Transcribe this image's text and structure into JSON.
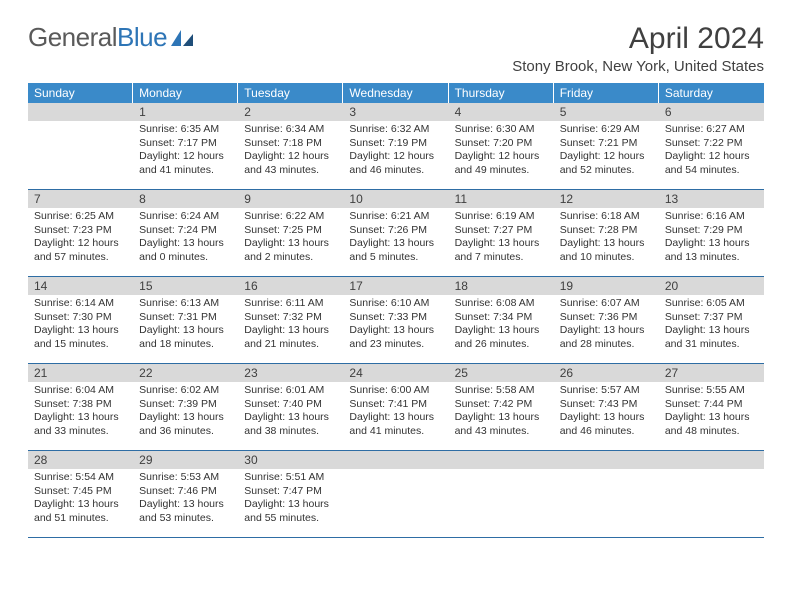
{
  "logo": {
    "word1": "General",
    "word2": "Blue"
  },
  "title": "April 2024",
  "subtitle": "Stony Brook, New York, United States",
  "colors": {
    "header_bg": "#3a8ac9",
    "header_text": "#ffffff",
    "band_bg": "#d9d9d9",
    "rule": "#2e6da4",
    "logo_gray": "#5a5a5a",
    "logo_blue": "#2e75b6"
  },
  "day_headers": [
    "Sunday",
    "Monday",
    "Tuesday",
    "Wednesday",
    "Thursday",
    "Friday",
    "Saturday"
  ],
  "weeks": [
    [
      {
        "num": "",
        "sunrise": "",
        "sunset": "",
        "daylight": ""
      },
      {
        "num": "1",
        "sunrise": "Sunrise: 6:35 AM",
        "sunset": "Sunset: 7:17 PM",
        "daylight": "Daylight: 12 hours and 41 minutes."
      },
      {
        "num": "2",
        "sunrise": "Sunrise: 6:34 AM",
        "sunset": "Sunset: 7:18 PM",
        "daylight": "Daylight: 12 hours and 43 minutes."
      },
      {
        "num": "3",
        "sunrise": "Sunrise: 6:32 AM",
        "sunset": "Sunset: 7:19 PM",
        "daylight": "Daylight: 12 hours and 46 minutes."
      },
      {
        "num": "4",
        "sunrise": "Sunrise: 6:30 AM",
        "sunset": "Sunset: 7:20 PM",
        "daylight": "Daylight: 12 hours and 49 minutes."
      },
      {
        "num": "5",
        "sunrise": "Sunrise: 6:29 AM",
        "sunset": "Sunset: 7:21 PM",
        "daylight": "Daylight: 12 hours and 52 minutes."
      },
      {
        "num": "6",
        "sunrise": "Sunrise: 6:27 AM",
        "sunset": "Sunset: 7:22 PM",
        "daylight": "Daylight: 12 hours and 54 minutes."
      }
    ],
    [
      {
        "num": "7",
        "sunrise": "Sunrise: 6:25 AM",
        "sunset": "Sunset: 7:23 PM",
        "daylight": "Daylight: 12 hours and 57 minutes."
      },
      {
        "num": "8",
        "sunrise": "Sunrise: 6:24 AM",
        "sunset": "Sunset: 7:24 PM",
        "daylight": "Daylight: 13 hours and 0 minutes."
      },
      {
        "num": "9",
        "sunrise": "Sunrise: 6:22 AM",
        "sunset": "Sunset: 7:25 PM",
        "daylight": "Daylight: 13 hours and 2 minutes."
      },
      {
        "num": "10",
        "sunrise": "Sunrise: 6:21 AM",
        "sunset": "Sunset: 7:26 PM",
        "daylight": "Daylight: 13 hours and 5 minutes."
      },
      {
        "num": "11",
        "sunrise": "Sunrise: 6:19 AM",
        "sunset": "Sunset: 7:27 PM",
        "daylight": "Daylight: 13 hours and 7 minutes."
      },
      {
        "num": "12",
        "sunrise": "Sunrise: 6:18 AM",
        "sunset": "Sunset: 7:28 PM",
        "daylight": "Daylight: 13 hours and 10 minutes."
      },
      {
        "num": "13",
        "sunrise": "Sunrise: 6:16 AM",
        "sunset": "Sunset: 7:29 PM",
        "daylight": "Daylight: 13 hours and 13 minutes."
      }
    ],
    [
      {
        "num": "14",
        "sunrise": "Sunrise: 6:14 AM",
        "sunset": "Sunset: 7:30 PM",
        "daylight": "Daylight: 13 hours and 15 minutes."
      },
      {
        "num": "15",
        "sunrise": "Sunrise: 6:13 AM",
        "sunset": "Sunset: 7:31 PM",
        "daylight": "Daylight: 13 hours and 18 minutes."
      },
      {
        "num": "16",
        "sunrise": "Sunrise: 6:11 AM",
        "sunset": "Sunset: 7:32 PM",
        "daylight": "Daylight: 13 hours and 21 minutes."
      },
      {
        "num": "17",
        "sunrise": "Sunrise: 6:10 AM",
        "sunset": "Sunset: 7:33 PM",
        "daylight": "Daylight: 13 hours and 23 minutes."
      },
      {
        "num": "18",
        "sunrise": "Sunrise: 6:08 AM",
        "sunset": "Sunset: 7:34 PM",
        "daylight": "Daylight: 13 hours and 26 minutes."
      },
      {
        "num": "19",
        "sunrise": "Sunrise: 6:07 AM",
        "sunset": "Sunset: 7:36 PM",
        "daylight": "Daylight: 13 hours and 28 minutes."
      },
      {
        "num": "20",
        "sunrise": "Sunrise: 6:05 AM",
        "sunset": "Sunset: 7:37 PM",
        "daylight": "Daylight: 13 hours and 31 minutes."
      }
    ],
    [
      {
        "num": "21",
        "sunrise": "Sunrise: 6:04 AM",
        "sunset": "Sunset: 7:38 PM",
        "daylight": "Daylight: 13 hours and 33 minutes."
      },
      {
        "num": "22",
        "sunrise": "Sunrise: 6:02 AM",
        "sunset": "Sunset: 7:39 PM",
        "daylight": "Daylight: 13 hours and 36 minutes."
      },
      {
        "num": "23",
        "sunrise": "Sunrise: 6:01 AM",
        "sunset": "Sunset: 7:40 PM",
        "daylight": "Daylight: 13 hours and 38 minutes."
      },
      {
        "num": "24",
        "sunrise": "Sunrise: 6:00 AM",
        "sunset": "Sunset: 7:41 PM",
        "daylight": "Daylight: 13 hours and 41 minutes."
      },
      {
        "num": "25",
        "sunrise": "Sunrise: 5:58 AM",
        "sunset": "Sunset: 7:42 PM",
        "daylight": "Daylight: 13 hours and 43 minutes."
      },
      {
        "num": "26",
        "sunrise": "Sunrise: 5:57 AM",
        "sunset": "Sunset: 7:43 PM",
        "daylight": "Daylight: 13 hours and 46 minutes."
      },
      {
        "num": "27",
        "sunrise": "Sunrise: 5:55 AM",
        "sunset": "Sunset: 7:44 PM",
        "daylight": "Daylight: 13 hours and 48 minutes."
      }
    ],
    [
      {
        "num": "28",
        "sunrise": "Sunrise: 5:54 AM",
        "sunset": "Sunset: 7:45 PM",
        "daylight": "Daylight: 13 hours and 51 minutes."
      },
      {
        "num": "29",
        "sunrise": "Sunrise: 5:53 AM",
        "sunset": "Sunset: 7:46 PM",
        "daylight": "Daylight: 13 hours and 53 minutes."
      },
      {
        "num": "30",
        "sunrise": "Sunrise: 5:51 AM",
        "sunset": "Sunset: 7:47 PM",
        "daylight": "Daylight: 13 hours and 55 minutes."
      },
      {
        "num": "",
        "sunrise": "",
        "sunset": "",
        "daylight": ""
      },
      {
        "num": "",
        "sunrise": "",
        "sunset": "",
        "daylight": ""
      },
      {
        "num": "",
        "sunrise": "",
        "sunset": "",
        "daylight": ""
      },
      {
        "num": "",
        "sunrise": "",
        "sunset": "",
        "daylight": ""
      }
    ]
  ]
}
